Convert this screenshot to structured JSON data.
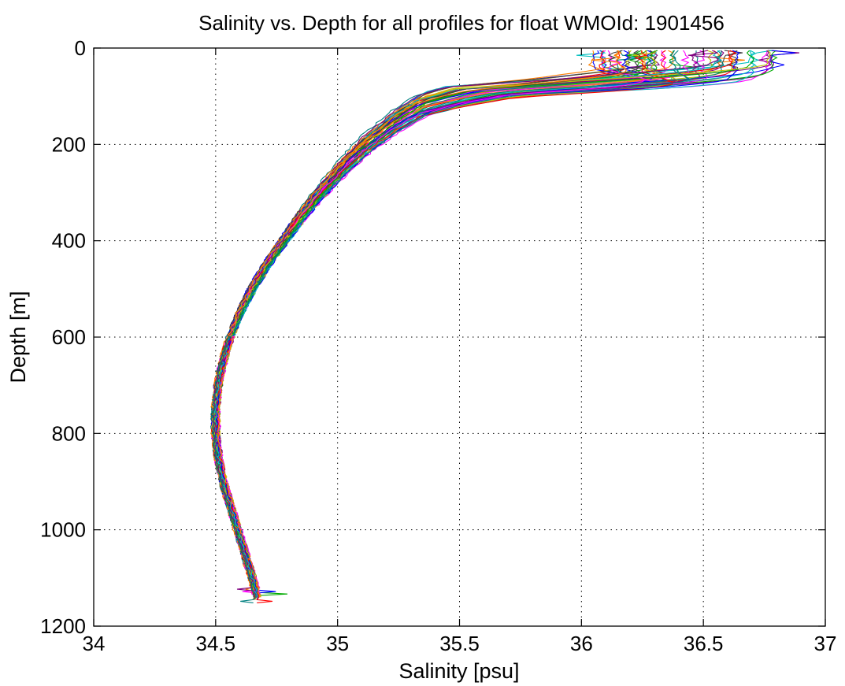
{
  "chart_data": {
    "type": "line",
    "title": "Salinity vs. Depth for all profiles for float WMOId: 1901456",
    "xlabel": "Salinity [psu]",
    "ylabel": "Depth [m]",
    "xlim": [
      34,
      37
    ],
    "ylim": [
      0,
      1200
    ],
    "y_reversed": true,
    "grid": true,
    "grid_style": "dotted",
    "legend": "none",
    "xticks": [
      "34",
      "34.5",
      "35",
      "35.5",
      "36",
      "36.5",
      "37"
    ],
    "yticks": [
      "0",
      "200",
      "400",
      "600",
      "800",
      "1000",
      "1200"
    ],
    "xtick_values": [
      34,
      34.5,
      35,
      35.5,
      36,
      36.5,
      37
    ],
    "ytick_values": [
      0,
      200,
      400,
      600,
      800,
      1000,
      1200
    ],
    "series_colors": [
      "#ff0000",
      "#0000ff",
      "#00aa00",
      "#ff00ff",
      "#00bfbf",
      "#bfbf00",
      "#404040",
      "#800080",
      "#ff8000",
      "#008080"
    ],
    "profile_count": 60,
    "representative_profile": {
      "depth": [
        5,
        30,
        45,
        60,
        70,
        80,
        100,
        120,
        150,
        200,
        250,
        300,
        350,
        400,
        450,
        500,
        550,
        600,
        650,
        700,
        750,
        800,
        850,
        900,
        950,
        1000,
        1050,
        1100,
        1140
      ],
      "salinity": [
        36.6,
        36.6,
        36.55,
        36.2,
        35.9,
        35.7,
        35.5,
        35.35,
        35.25,
        35.12,
        35.02,
        34.93,
        34.85,
        34.78,
        34.71,
        34.65,
        34.6,
        34.56,
        34.53,
        34.51,
        34.5,
        34.5,
        34.51,
        34.53,
        34.56,
        34.59,
        34.62,
        34.65,
        34.67
      ]
    },
    "annotations": [
      "surface spikes near 36.0–36.8 psu at 0–90 m",
      "outlier spikes near 1125–1145 m (34.45–34.83 psu)"
    ]
  }
}
